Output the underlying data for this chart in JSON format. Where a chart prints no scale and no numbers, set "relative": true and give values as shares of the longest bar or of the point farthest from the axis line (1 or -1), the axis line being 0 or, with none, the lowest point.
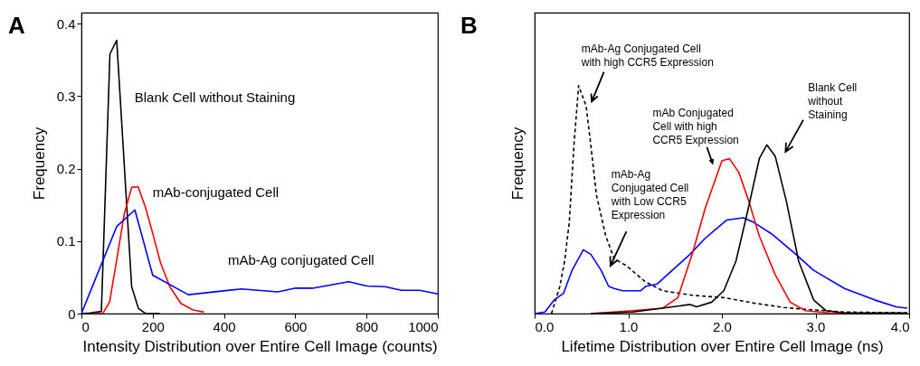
{
  "chart_data": [
    {
      "type": "line",
      "title": "A",
      "xlabel": "Intensity Distribution over Entire Cell Image (counts)",
      "ylabel": "Frequency",
      "xlim": [
        0,
        1000
      ],
      "xticks": [
        0,
        200,
        400,
        600,
        800,
        1000
      ],
      "ylim": [
        0,
        0.415
      ],
      "yticks": [
        0,
        0.1,
        0.2,
        0.3,
        0.4
      ],
      "series": [
        {
          "color": "#000000",
          "x": [
            0,
            25,
            56,
            80,
            99,
            141,
            160,
            180,
            220
          ],
          "values": [
            0,
            0.001,
            0.003,
            0.358,
            0.377,
            0.037,
            0.007,
            0,
            0
          ]
        },
        {
          "color": "#ff0000",
          "x": [
            34,
            60,
            79,
            99,
            120,
            141,
            159,
            180,
            202,
            222,
            248,
            279,
            313,
            344
          ],
          "values": [
            0,
            0,
            0.016,
            0.074,
            0.137,
            0.174,
            0.175,
            0.146,
            0.107,
            0.07,
            0.037,
            0.014,
            0.005,
            0.002
          ]
        },
        {
          "color": "#0000ff",
          "x": [
            0,
            99,
            150,
            200,
            300,
            449,
            551,
            598,
            648,
            750,
            801,
            852,
            898,
            949,
            1000
          ],
          "values": [
            0,
            0.12,
            0.143,
            0.053,
            0.026,
            0.034,
            0.03,
            0.035,
            0.035,
            0.044,
            0.038,
            0.037,
            0.032,
            0.032,
            0.027
          ]
        }
      ],
      "annotations": [
        "Blank Cell without Staining",
        "mAb-conjugated Cell",
        "mAb-Ag conjugated Cell"
      ]
    },
    {
      "type": "line",
      "title": "B",
      "xlabel": "Lifetime Distribution over Entire Cell Image (ns)",
      "ylabel": "Frequency",
      "relative": true,
      "tick_labels": "x",
      "xlim": [
        0,
        4
      ],
      "xticks": [
        {
          "value": 0,
          "label": "0.0"
        },
        {
          "value": 1,
          "label": "1.0"
        },
        {
          "value": 2,
          "label": "2.0"
        },
        {
          "value": 3,
          "label": "3.0"
        },
        {
          "value": 4,
          "label": "4.0"
        }
      ],
      "series": [
        {
          "color": "#000000",
          "line_style": "dashed",
          "x": [
            0.18,
            0.27,
            0.32,
            0.37,
            0.42,
            0.47,
            0.55,
            0.6,
            0.66,
            0.76,
            0.85,
            0.98,
            1.18,
            1.37,
            1.69,
            2.02,
            2.34,
            2.66,
            2.98,
            3.31,
            3.95,
            4.0
          ],
          "values": [
            0,
            0.12,
            0.23,
            0.4,
            0.74,
            1,
            0.91,
            0.74,
            0.52,
            0.34,
            0.24,
            0.21,
            0.14,
            0.1,
            0.08,
            0.07,
            0.046,
            0.027,
            0.016,
            0.007,
            0.003,
            0.003
          ]
        },
        {
          "color": "#0000ff",
          "x": [
            0,
            0.11,
            0.21,
            0.31,
            0.4,
            0.52,
            0.6,
            0.71,
            0.79,
            0.85,
            0.94,
            1.13,
            1.19,
            1.31,
            1.47,
            1.66,
            1.82,
            2.05,
            2.23,
            2.34,
            2.53,
            2.79,
            2.98,
            3.31,
            3.63,
            3.86,
            3.98
          ],
          "values": [
            0,
            0.007,
            0.06,
            0.09,
            0.19,
            0.28,
            0.26,
            0.19,
            0.12,
            0.11,
            0.1,
            0.1,
            0.12,
            0.13,
            0.19,
            0.26,
            0.33,
            0.41,
            0.42,
            0.4,
            0.35,
            0.26,
            0.19,
            0.11,
            0.06,
            0.03,
            0.024
          ]
        },
        {
          "color": "#ff0000",
          "x": [
            0.6,
            1.05,
            1.37,
            1.53,
            1.69,
            1.82,
            2.0,
            2.08,
            2.18,
            2.29,
            2.4,
            2.57,
            2.73,
            2.89,
            3.15,
            3.5
          ],
          "values": [
            0,
            0.013,
            0.024,
            0.07,
            0.27,
            0.46,
            0.67,
            0.68,
            0.62,
            0.49,
            0.34,
            0.17,
            0.05,
            0.013,
            0.003,
            0
          ]
        },
        {
          "color": "#000000",
          "x": [
            0.6,
            1.05,
            1.53,
            1.66,
            1.73,
            1.89,
            2.02,
            2.15,
            2.27,
            2.4,
            2.48,
            2.57,
            2.69,
            2.82,
            2.98,
            3.11,
            3.31,
            3.98
          ],
          "values": [
            0,
            0.007,
            0.033,
            0.04,
            0.03,
            0.05,
            0.1,
            0.23,
            0.44,
            0.68,
            0.74,
            0.69,
            0.49,
            0.23,
            0.06,
            0.013,
            0.003,
            0.003
          ]
        }
      ],
      "annotations": [
        "mAb-Ag Conjugated Cell\nwith high CCR5 Expression",
        "mAb-Ag\nConjugated Cell\nwith Low CCR5\nExpression",
        "mAb Conjugated\nCell with high\nCCR5 Expression",
        "Blank Cell\nwithout\nStaining"
      ]
    }
  ]
}
